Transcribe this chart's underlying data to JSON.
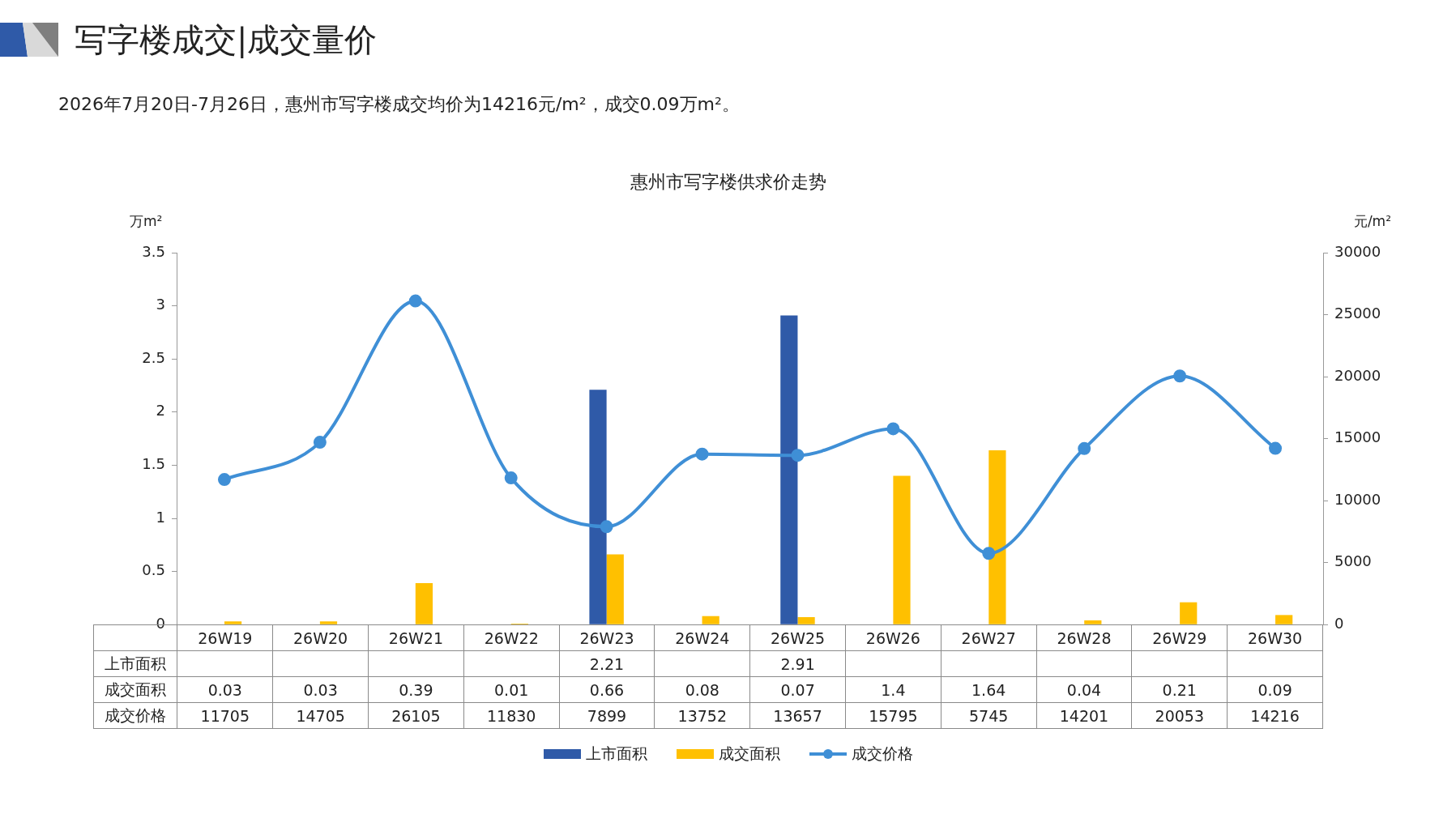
{
  "chart_data": {
    "type": "bar",
    "title": "惠州市写字楼供求价走势",
    "annotations": [
      "写字楼成交|成交量价",
      "2026年7月20日-7月26日，惠州市写字楼成交均价为14216元/m²，成交0.09万m²。"
    ],
    "ylabel": "万m²",
    "y2label": "元/m²",
    "categories": [
      "26W19",
      "26W20",
      "26W21",
      "26W22",
      "26W23",
      "26W24",
      "26W25",
      "26W26",
      "26W27",
      "26W28",
      "26W29",
      "26W30"
    ],
    "series": [
      {
        "name": "上市面积",
        "color": "#2f5aa8",
        "values": [
          null,
          null,
          null,
          null,
          2.21,
          null,
          2.91,
          null,
          null,
          null,
          null,
          null
        ]
      },
      {
        "name": "成交面积",
        "color": "#ffc000",
        "values": [
          0.03,
          0.03,
          0.39,
          0.01,
          0.66,
          0.08,
          0.07,
          1.4,
          1.64,
          0.04,
          0.21,
          0.09
        ]
      },
      {
        "name": "成交价格",
        "type": "line",
        "axis": "y2",
        "color": "#3f8fd6",
        "values": [
          11705,
          14705,
          26105,
          11830,
          7899,
          13752,
          13657,
          15795,
          5745,
          14201,
          20053,
          14216
        ]
      }
    ],
    "ylim": [
      0,
      3.5
    ],
    "yticks": [
      0,
      0.5,
      1,
      1.5,
      2,
      2.5,
      3,
      3.5
    ],
    "y2lim": [
      0,
      30000
    ],
    "y2ticks": [
      0,
      5000,
      10000,
      15000,
      20000,
      25000,
      30000
    ],
    "grid": false,
    "legend": "bottom",
    "marker": "circle",
    "data_labels": true
  }
}
